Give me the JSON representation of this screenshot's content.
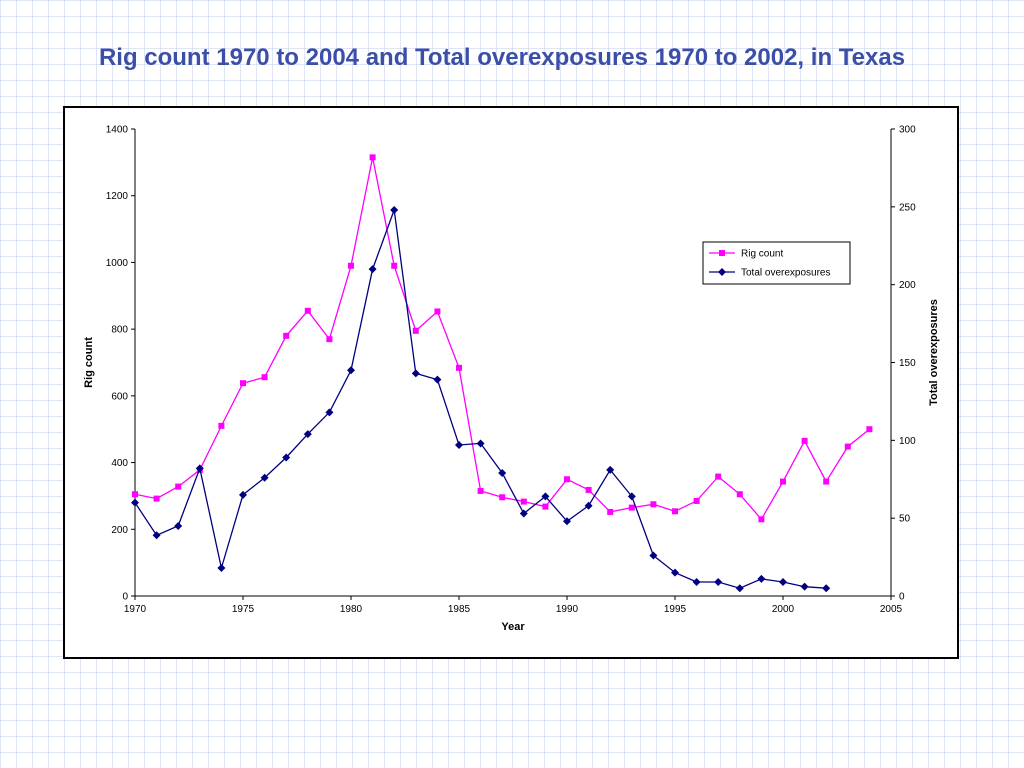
{
  "slide": {
    "title": "Rig count 1970 to 2004 and Total overexposures 1970 to 2002, in Texas"
  },
  "colors": {
    "rig": "#ff00ff",
    "overexposure": "#000080",
    "title": "#3b4ea8",
    "deco": "#c9d6f5"
  },
  "chart_data": {
    "type": "line",
    "title": "",
    "xlabel": "Year",
    "ylabel": "Rig count",
    "y2label": "Total overexposures",
    "xlim": [
      1970,
      2005
    ],
    "ylim": [
      0,
      1400
    ],
    "y2lim": [
      0,
      300
    ],
    "xticks": [
      1970,
      1975,
      1980,
      1985,
      1990,
      1995,
      2000,
      2005
    ],
    "yticks": [
      0,
      200,
      400,
      600,
      800,
      1000,
      1200,
      1400
    ],
    "y2ticks": [
      0,
      50,
      100,
      150,
      200,
      250,
      300
    ],
    "grid": false,
    "legend_position": "upper-right",
    "series": [
      {
        "name": "Rig count",
        "axis": "left",
        "marker": "square",
        "x": [
          1970,
          1971,
          1972,
          1973,
          1974,
          1975,
          1976,
          1977,
          1978,
          1979,
          1980,
          1981,
          1982,
          1983,
          1984,
          1985,
          1986,
          1987,
          1988,
          1989,
          1990,
          1991,
          1992,
          1993,
          1994,
          1995,
          1996,
          1997,
          1998,
          1999,
          2000,
          2001,
          2002,
          2003,
          2004
        ],
        "values": [
          305,
          292,
          328,
          378,
          510,
          638,
          656,
          780,
          855,
          770,
          990,
          1315,
          990,
          795,
          853,
          684,
          315,
          296,
          283,
          268,
          350,
          318,
          252,
          265,
          275,
          254,
          285,
          358,
          305,
          230,
          343,
          465,
          343,
          448,
          500
        ]
      },
      {
        "name": "Total overexposures",
        "axis": "right",
        "marker": "diamond",
        "x": [
          1970,
          1971,
          1972,
          1973,
          1974,
          1975,
          1976,
          1977,
          1978,
          1979,
          1980,
          1981,
          1982,
          1983,
          1984,
          1985,
          1986,
          1987,
          1988,
          1989,
          1990,
          1991,
          1992,
          1993,
          1994,
          1995,
          1996,
          1997,
          1998,
          1999,
          2000,
          2001,
          2002
        ],
        "values": [
          60,
          39,
          45,
          82,
          18,
          65,
          76,
          89,
          104,
          118,
          145,
          210,
          248,
          143,
          139,
          97,
          98,
          79,
          53,
          64,
          48,
          58,
          81,
          64,
          26,
          15,
          9,
          9,
          5,
          11,
          9,
          6,
          5
        ]
      }
    ]
  }
}
